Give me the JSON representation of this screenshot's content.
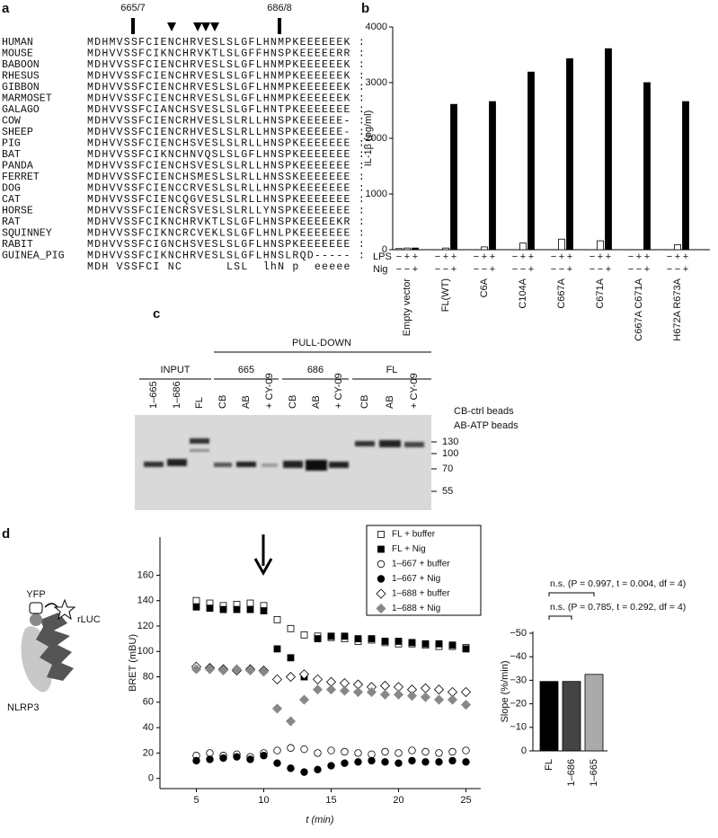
{
  "panel_labels": [
    "a",
    "b",
    "c",
    "d"
  ],
  "alignment": {
    "markers": [
      "665/7",
      "686/8"
    ],
    "rows": [
      {
        "name": "HUMAN",
        "sequence": "MDHMVSSFCIENCHRVESLSLGFLHNMPKEEEEEEK :"
      },
      {
        "name": "MOUSE",
        "sequence": "MDHVVSSFCIKNCHRVKTLSLGFFHNSPKEEEEERR :"
      },
      {
        "name": "BABOON",
        "sequence": "MDHVVSSFCIENCHRVESLSLGFLHNMPKEEEEEEK :"
      },
      {
        "name": "RHESUS",
        "sequence": "MDHVVSSFCIENCHRVESLSLGFLHNMPKEEEEEEK :"
      },
      {
        "name": "GIBBON",
        "sequence": "MDHVVSSFCIENCHRVESLSLGFLHNMPKEEEEEEK :"
      },
      {
        "name": "MARMOSET",
        "sequence": "MDHVVSSFCIENCHRVESLSLGFLHNMPKEEEEEEK :"
      },
      {
        "name": "GALAGO",
        "sequence": "MDHVVSSFCIANCHSVESLSLGFLHNTPKEEEEEEE :"
      },
      {
        "name": "COW",
        "sequence": "MDHVVSSFCIENCRHVESLSLRLLHNSPKEEEEEE- :"
      },
      {
        "name": "SHEEP",
        "sequence": "MDHVVSSFCIENCRHVESLSLRLLHNSPKEEEEEE- :"
      },
      {
        "name": "PIG",
        "sequence": "MDHVVSSFCIENCHSVESLSLRLLHNSPKEEEEEEE :"
      },
      {
        "name": "BAT",
        "sequence": "MDHVVSSFCIKNCHNVQSLSLGFLHNSPKEEEEEEE :"
      },
      {
        "name": "PANDA",
        "sequence": "MDHVVSSFCIENCHSVESLSLRLLHNSPKEEEEEEE :"
      },
      {
        "name": "FERRET",
        "sequence": "MDHVVSSFCIENCHSMESLSLRLLHNSSKEEEEEEE :"
      },
      {
        "name": "DOG",
        "sequence": "MDHVVSSFCIENCCRVESLSLRLLHNSPKEEEEEEE :"
      },
      {
        "name": "CAT",
        "sequence": "MDHVVSSFCIENCQGVESLSLRLLHNSPKEEEEEEE :"
      },
      {
        "name": "HORSE",
        "sequence": "MDHVVSSFCIENCRSVESLSLRLLYNSPKEEEEEEE :"
      },
      {
        "name": "RAT",
        "sequence": "MDHVVSSFCIKNCHRVKTLSLGFLHNSPKEEEEEKR :"
      },
      {
        "name": "SQUINNEY",
        "sequence": "MDHVVSSFCIKNCRCVEKLSLGFLHNLPKEEEEEEE :"
      },
      {
        "name": "RABIT",
        "sequence": "MDHVVSSFCIGNCHSVESLSLGFLHNSPKEEEEEEE :"
      },
      {
        "name": "GUINEA_PIG",
        "sequence": "MDHVVSSFCIKNCHRVESLSLGFLHNSLRQD----- :"
      }
    ],
    "consensus": "MDH VSSFCI NC      LSL  lhN p  eeeee"
  },
  "gel": {
    "pull_down": "PULL-DOWN",
    "groups": [
      "INPUT",
      "665",
      "686",
      "FL"
    ],
    "lanes": [
      "1–665",
      "1–686",
      "FL",
      "CB",
      "AB",
      "+ CY-09",
      "CB",
      "AB",
      "+ CY-09",
      "CB",
      "AB",
      "+ CY-09"
    ],
    "bead_legend": [
      "CB-ctrl beads",
      "AB-ATP beads"
    ],
    "size_markers": [
      "130",
      "100",
      "70",
      "55"
    ]
  },
  "diagram": {
    "labels": [
      "YFP",
      "rLUC",
      "NLRP3"
    ]
  },
  "chart_data": [
    {
      "type": "bar",
      "y_label": "IL-1β (pg/ml)",
      "categories": [
        "Empty vector",
        "FL(WT)",
        "C6A",
        "C104A",
        "C667A",
        "C671A",
        "C667A C671A",
        "H672A R673A"
      ],
      "condition_rows": [
        "LPS",
        "Nig"
      ],
      "condition_signs": [
        [
          "−",
          "+",
          "+"
        ],
        [
          "−",
          "−",
          "+"
        ]
      ],
      "series": [
        {
          "color": "#ffffff",
          "values": [
            20,
            0,
            0,
            0,
            0,
            0,
            0,
            0
          ]
        },
        {
          "color": "#ffffff",
          "values": [
            30,
            30,
            50,
            120,
            190,
            160,
            0,
            90
          ]
        },
        {
          "color": "#000000",
          "values": [
            30,
            2610,
            2660,
            3190,
            3430,
            3610,
            3000,
            2660
          ]
        }
      ],
      "ylim": [
        0,
        4000
      ],
      "yticks": [
        0,
        1000,
        2000,
        3000,
        4000
      ]
    },
    {
      "type": "scatter",
      "x_label": "t (min)",
      "y_label": "BRET (mBU)",
      "x": [
        5,
        6,
        7,
        8,
        9,
        10,
        11,
        12,
        13,
        14,
        15,
        16,
        17,
        18,
        19,
        20,
        21,
        22,
        23,
        24,
        25
      ],
      "series": [
        {
          "name": "FL + buffer",
          "marker": "square",
          "color": "#ffffff",
          "values": [
            140,
            138,
            136,
            137,
            138,
            136,
            125,
            118,
            113,
            112,
            111,
            110,
            108,
            109,
            107,
            106,
            106,
            105,
            104,
            104,
            103
          ]
        },
        {
          "name": "FL + Nig",
          "marker": "square",
          "color": "#000000",
          "values": [
            135,
            134,
            133,
            133,
            133,
            132,
            102,
            95,
            80,
            110,
            112,
            112,
            110,
            110,
            108,
            108,
            107,
            106,
            106,
            105,
            102
          ]
        },
        {
          "name": "1–667 + buffer",
          "marker": "circle",
          "color": "#ffffff",
          "values": [
            18,
            20,
            18,
            19,
            17,
            20,
            22,
            24,
            23,
            20,
            22,
            21,
            20,
            19,
            21,
            20,
            22,
            21,
            20,
            21,
            22
          ]
        },
        {
          "name": "1–667 + Nig",
          "marker": "circle",
          "color": "#000000",
          "values": [
            14,
            15,
            16,
            17,
            15,
            18,
            12,
            8,
            5,
            7,
            10,
            12,
            13,
            14,
            13,
            12,
            14,
            13,
            13,
            14,
            13
          ]
        },
        {
          "name": "1–688 + buffer",
          "marker": "diamond",
          "color": "#ffffff",
          "values": [
            88,
            87,
            86,
            85,
            86,
            85,
            78,
            80,
            82,
            78,
            76,
            75,
            74,
            72,
            73,
            72,
            70,
            71,
            70,
            68,
            68
          ]
        },
        {
          "name": "1–688 + Nig",
          "marker": "diamond",
          "color": "#888888",
          "values": [
            86,
            86,
            85,
            86,
            85,
            84,
            55,
            45,
            62,
            70,
            70,
            69,
            68,
            68,
            66,
            66,
            65,
            64,
            62,
            62,
            58
          ]
        }
      ],
      "xlim": [
        2.3,
        26.1
      ],
      "xticks": [
        5,
        10,
        15,
        20,
        25
      ],
      "ylim": [
        -8,
        190
      ],
      "yticks": [
        0,
        20,
        40,
        60,
        80,
        100,
        120,
        140,
        160
      ],
      "legend": "upper right"
    },
    {
      "type": "bar",
      "y_label": "Slope (%/min)",
      "categories": [
        "FL",
        "1–686",
        "1–665"
      ],
      "values": [
        -29.5,
        -29.5,
        -32.5
      ],
      "colors": [
        "#000000",
        "#444444",
        "#aaaaaa"
      ],
      "annotations": [
        "n.s. (P = 0.997, t = 0.004, df = 4)",
        "n.s. (P = 0.785, t = 0.292, df = 4)"
      ],
      "ylim": [
        0,
        -50
      ],
      "yticks": [
        0,
        {
          "value": -10,
          "label": "−10"
        },
        {
          "value": -20,
          "label": "−20"
        },
        {
          "value": -30,
          "label": "−30"
        },
        {
          "value": -40,
          "label": "−40"
        },
        {
          "value": -50,
          "label": "−50"
        }
      ]
    }
  ]
}
